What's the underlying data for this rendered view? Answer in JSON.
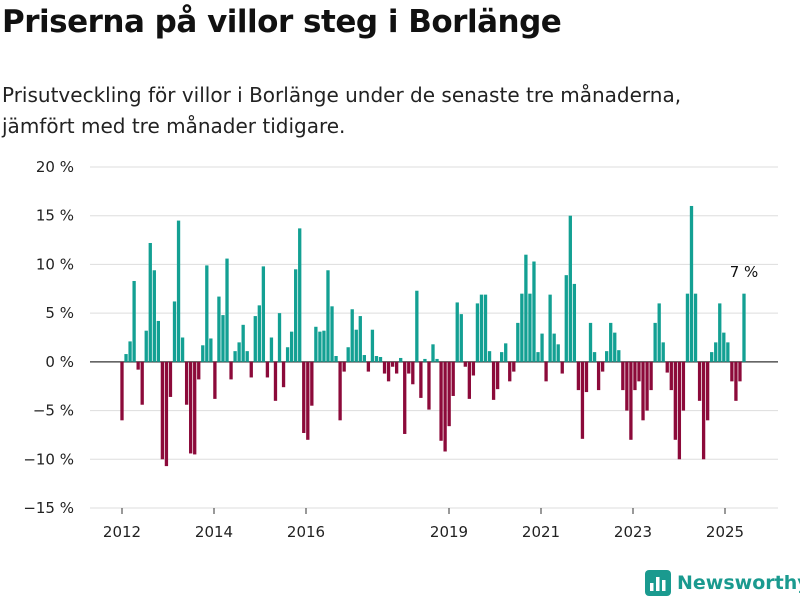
{
  "header": {
    "title": "Priserna på villor steg i Borlänge",
    "subtitle_line1": "Prisutveckling för villor i Borlänge under de senaste tre månaderna,",
    "subtitle_line2": "jämfört med tre månader tidigare."
  },
  "brand": {
    "name": "Newsworthy",
    "icon": "bar-chart-logo-icon"
  },
  "chart_data": {
    "type": "bar",
    "title": "",
    "xlabel": "",
    "ylabel": "",
    "ylim": [
      -15,
      20
    ],
    "yticks": [
      20,
      15,
      10,
      5,
      0,
      -5,
      -10,
      -15
    ],
    "ytick_labels": [
      "20 %",
      "15 %",
      "10 %",
      "5 %",
      "0 %",
      "−5 %",
      "−10 %",
      "−15 %"
    ],
    "xtick_labels": [
      "2012",
      "2014",
      "2016",
      "2019",
      "2021",
      "2023",
      "2025"
    ],
    "grid": "horizontal",
    "colors": {
      "positive": "#13a093",
      "negative": "#8c0a3a",
      "grid": "#dddddd",
      "zero": "#333333"
    },
    "annotation": {
      "text": "7 %"
    },
    "values": [
      -6,
      0.8,
      2.1,
      8.3,
      -0.8,
      -4.4,
      3.2,
      12.2,
      9.4,
      4.2,
      -10.0,
      -10.7,
      -3.6,
      6.2,
      14.5,
      2.5,
      -4.4,
      -9.4,
      -9.5,
      -1.8,
      1.7,
      9.9,
      2.4,
      -3.8,
      6.7,
      4.8,
      10.6,
      -1.8,
      1.1,
      2.0,
      3.8,
      1.1,
      -1.6,
      4.7,
      5.8,
      9.8,
      -1.6,
      2.5,
      -4.0,
      5.0,
      -2.6,
      1.5,
      3.1,
      9.5,
      13.7,
      -7.3,
      -8.0,
      -4.5,
      3.6,
      3.1,
      3.2,
      9.4,
      5.7,
      0.6,
      -6.0,
      -1.0,
      1.5,
      5.4,
      3.3,
      4.7,
      0.7,
      -1.0,
      3.3,
      0.6,
      0.5,
      -1.2,
      -2.0,
      -0.5,
      -1.2,
      0.4,
      -7.4,
      -1.2,
      -2.3,
      7.3,
      -3.7,
      0.3,
      -4.9,
      1.8,
      0.3,
      -8.1,
      -9.2,
      -6.6,
      -3.5,
      6.1,
      4.9,
      -0.5,
      -3.8,
      -1.4,
      6.0,
      6.9,
      6.9,
      1.1,
      -3.9,
      -2.8,
      1.0,
      1.9,
      -2.0,
      -1.0,
      4.0,
      7.0,
      11.0,
      7.0,
      10.3,
      1.0,
      2.9,
      -2.0,
      6.9,
      2.9,
      1.8,
      -1.2,
      8.9,
      15.0,
      8.0,
      -2.9,
      -7.9,
      -3.1,
      4.0,
      1.0,
      -2.9,
      -1.0,
      1.1,
      4.0,
      3.0,
      1.2,
      -2.9,
      -5.0,
      -8.0,
      -2.9,
      -2.0,
      -6.0,
      -5.0,
      -2.9,
      4.0,
      6.0,
      2.0,
      -1.1,
      -2.9,
      -8.0,
      -10.0,
      -5.0,
      7.0,
      16.0,
      7.0,
      -4.0,
      -10.0,
      -6.0,
      1.0,
      2.0,
      6.0,
      3.0,
      2.0,
      -2.0,
      -4.0,
      -2.0,
      7.0
    ]
  }
}
